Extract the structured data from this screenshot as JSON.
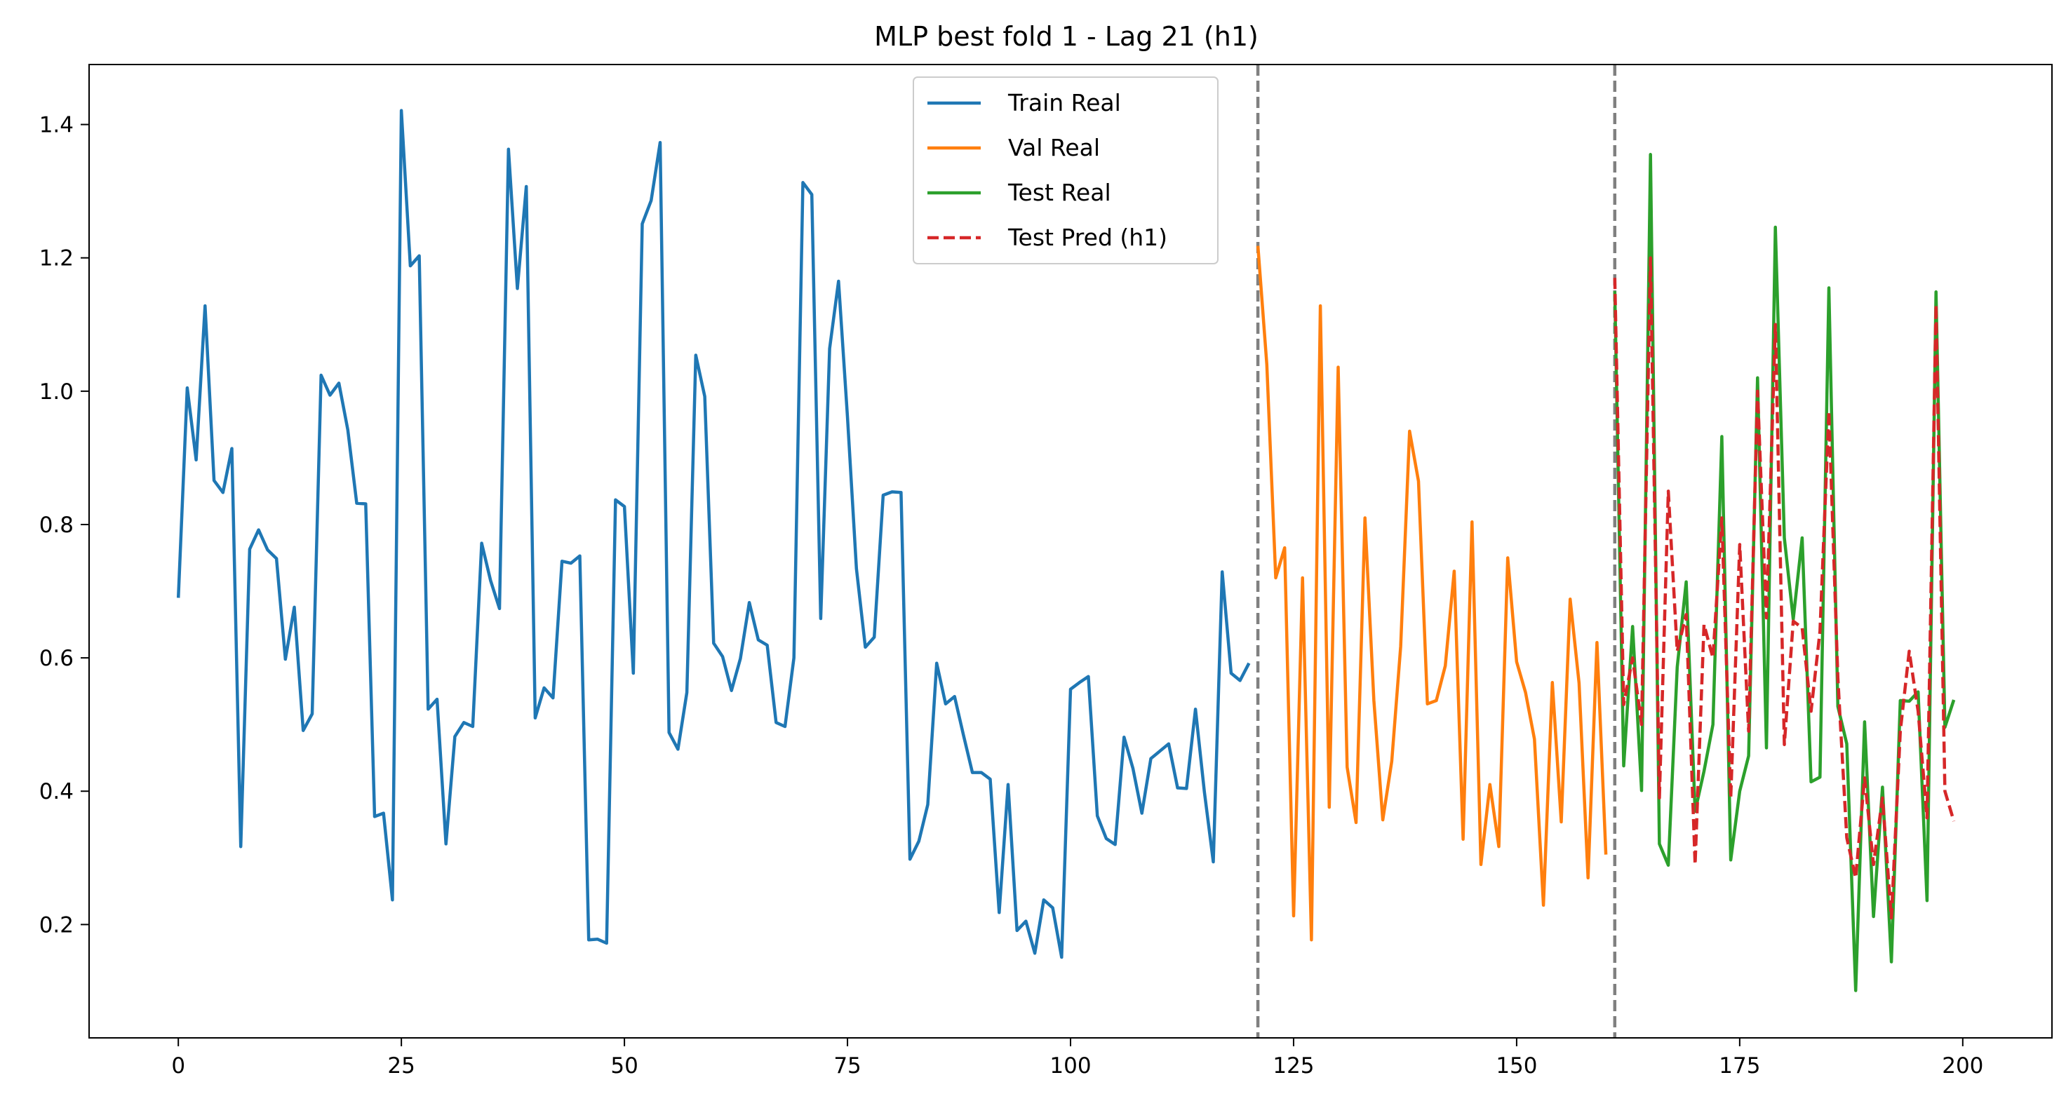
{
  "chart_data": {
    "type": "line",
    "title": "MLP best fold 1 - Lag 21 (h1)",
    "xlabel": "",
    "ylabel": "",
    "xlim": [
      -10,
      210
    ],
    "ylim": [
      0.03,
      1.49
    ],
    "x_ticks": [
      0,
      25,
      50,
      75,
      100,
      125,
      150,
      175,
      200
    ],
    "y_ticks": [
      0.2,
      0.4,
      0.6,
      0.8,
      1.0,
      1.2,
      1.4
    ],
    "x_tick_labels": [
      "0",
      "25",
      "50",
      "75",
      "100",
      "125",
      "150",
      "175",
      "200"
    ],
    "y_tick_labels": [
      "0.2",
      "0.4",
      "0.6",
      "0.8",
      "1.0",
      "1.2",
      "1.4"
    ],
    "grid": false,
    "legend_position": "top-center",
    "vlines": [
      121,
      161
    ],
    "series": [
      {
        "name": "Train Real",
        "color": "#1f77b4",
        "style": "solid",
        "x_start": 0,
        "values": [
          0.69,
          1.005,
          0.897,
          1.128,
          0.866,
          0.848,
          0.914,
          0.317,
          0.763,
          0.792,
          0.762,
          0.749,
          0.598,
          0.676,
          0.491,
          0.516,
          1.024,
          0.994,
          1.012,
          0.942,
          0.832,
          0.831,
          0.362,
          0.367,
          0.237,
          1.421,
          1.188,
          1.203,
          0.523,
          0.538,
          0.321,
          0.482,
          0.503,
          0.497,
          0.772,
          0.716,
          0.674,
          1.363,
          1.154,
          1.307,
          0.51,
          0.555,
          0.54,
          0.745,
          0.742,
          0.753,
          0.177,
          0.178,
          0.172,
          0.837,
          0.827,
          0.577,
          1.251,
          1.286,
          1.373,
          0.488,
          0.463,
          0.548,
          1.054,
          0.992,
          0.622,
          0.602,
          0.551,
          0.599,
          0.683,
          0.627,
          0.619,
          0.503,
          0.497,
          0.6,
          1.313,
          1.295,
          0.659,
          1.064,
          1.165,
          0.962,
          0.734,
          0.616,
          0.631,
          0.844,
          0.849,
          0.848,
          0.298,
          0.325,
          0.38,
          0.592,
          0.531,
          0.542,
          0.484,
          0.428,
          0.428,
          0.418,
          0.218,
          0.41,
          0.191,
          0.205,
          0.157,
          0.237,
          0.225,
          0.151,
          0.553,
          0.563,
          0.572,
          0.363,
          0.329,
          0.32,
          0.481,
          0.434,
          0.367,
          0.449,
          0.46,
          0.471,
          0.405,
          0.404,
          0.523,
          0.399,
          0.294,
          0.729,
          0.577,
          0.566,
          0.592
        ]
      },
      {
        "name": "Val Real",
        "color": "#ff7f0e",
        "style": "solid",
        "x_start": 121,
        "values": [
          1.218,
          1.04,
          0.72,
          0.765,
          0.213,
          0.72,
          0.177,
          1.128,
          0.376,
          1.036,
          0.436,
          0.353,
          0.81,
          0.536,
          0.357,
          0.445,
          0.617,
          0.94,
          0.865,
          0.531,
          0.536,
          0.588,
          0.73,
          0.328,
          0.804,
          0.29,
          0.41,
          0.317,
          0.75,
          0.594,
          0.548,
          0.478,
          0.229,
          0.563,
          0.354,
          0.688,
          0.562,
          0.27,
          0.623,
          0.305
        ]
      },
      {
        "name": "Test Real",
        "color": "#2ca02c",
        "style": "solid",
        "x_start": 161,
        "values": [
          1.15,
          0.438,
          0.647,
          0.401,
          1.355,
          0.321,
          0.289,
          0.586,
          0.714,
          0.37,
          0.43,
          0.5,
          0.932,
          0.297,
          0.4,
          0.453,
          1.02,
          0.465,
          1.246,
          0.78,
          0.658,
          0.78,
          0.414,
          0.421,
          1.155,
          0.527,
          0.471,
          0.101,
          0.504,
          0.212,
          0.406,
          0.144,
          0.536,
          0.535,
          0.549,
          0.236,
          1.149,
          0.496,
          0.537
        ]
      },
      {
        "name": "Test Pred (h1)",
        "color": "#d62728",
        "style": "dashed",
        "x_start": 161,
        "values": [
          1.17,
          0.53,
          0.6,
          0.5,
          1.2,
          0.39,
          0.85,
          0.61,
          0.665,
          0.29,
          0.65,
          0.6,
          0.81,
          0.39,
          0.77,
          0.49,
          1.0,
          0.66,
          1.1,
          0.47,
          0.655,
          0.645,
          0.52,
          0.64,
          0.97,
          0.57,
          0.33,
          0.27,
          0.42,
          0.29,
          0.39,
          0.21,
          0.49,
          0.61,
          0.52,
          0.36,
          1.13,
          0.4,
          0.355
        ]
      }
    ]
  }
}
